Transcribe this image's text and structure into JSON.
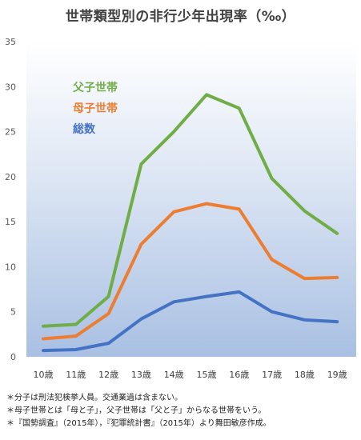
{
  "chart_data": {
    "type": "line",
    "title": "世帯類型別の非行少年出現率（‰）",
    "categories": [
      "10歳",
      "11歳",
      "12歳",
      "13歳",
      "14歳",
      "15歳",
      "16歳",
      "17歳",
      "18歳",
      "19歳"
    ],
    "ylim": [
      0,
      35
    ],
    "yticks": [
      "0",
      "5",
      "10",
      "15",
      "20",
      "25",
      "30",
      "35"
    ],
    "grid": false,
    "legend_position": "top-left inside plot",
    "series": [
      {
        "name": "父子世帯",
        "color": "#70ad47",
        "values": [
          3.4,
          3.6,
          6.7,
          21.4,
          25.0,
          29.1,
          27.6,
          19.8,
          16.2,
          13.7
        ]
      },
      {
        "name": "母子世帯",
        "color": "#ed7d31",
        "values": [
          2.0,
          2.3,
          4.8,
          12.5,
          16.1,
          17.0,
          16.4,
          10.8,
          8.7,
          8.8
        ]
      },
      {
        "name": "総数",
        "color": "#4472c4",
        "values": [
          0.7,
          0.8,
          1.5,
          4.2,
          6.1,
          6.7,
          7.2,
          5.0,
          4.1,
          3.9
        ]
      }
    ]
  },
  "notes": [
    "＊分子は刑法犯検挙人員。交通業過は含まない。",
    "＊母子世帯とは「母と子」，父子世帯は「父と子」からなる世帯をいう。",
    "＊『国勢調査』（2015年），『犯罪統計書』（2015年）より舞田敏彦作成。"
  ]
}
